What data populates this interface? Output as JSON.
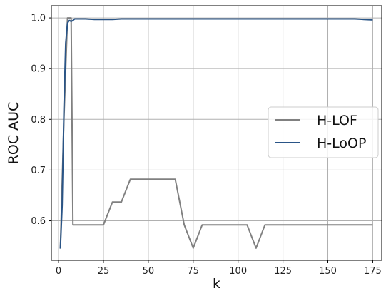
{
  "chart_data": {
    "type": "line",
    "title": "",
    "xlabel": "k",
    "ylabel": "ROC AUC",
    "xlim": [
      -4,
      180
    ],
    "ylim": [
      0.522,
      1.024
    ],
    "grid": true,
    "legend_position": "center-right",
    "x_ticks": [
      0,
      25,
      50,
      75,
      100,
      125,
      150,
      175
    ],
    "y_ticks": [
      0.6,
      0.7,
      0.8,
      0.9,
      1.0
    ],
    "y_tick_labels": [
      "0.6",
      "0.7",
      "0.8",
      "0.9",
      "1.0"
    ],
    "series": [
      {
        "name": "H-LOF",
        "color": "#808080",
        "x": [
          1,
          3,
          5,
          7,
          8,
          9,
          25,
          30,
          35,
          40,
          45,
          50,
          55,
          60,
          65,
          70,
          75,
          80,
          85,
          90,
          95,
          100,
          105,
          110,
          115,
          120,
          125,
          130,
          135,
          140,
          145,
          150,
          155,
          160,
          165,
          170,
          175
        ],
        "y": [
          0.545,
          0.8,
          1.0,
          1.0,
          0.592,
          0.592,
          0.592,
          0.637,
          0.637,
          0.682,
          0.682,
          0.682,
          0.682,
          0.682,
          0.682,
          0.592,
          0.546,
          0.592,
          0.592,
          0.592,
          0.592,
          0.592,
          0.592,
          0.546,
          0.592,
          0.592,
          0.592,
          0.592,
          0.592,
          0.592,
          0.592,
          0.592,
          0.592,
          0.592,
          0.592,
          0.592,
          0.592
        ]
      },
      {
        "name": "H-LoOP",
        "color": "#2a5587",
        "x": [
          1,
          2,
          3,
          4,
          5,
          6,
          7,
          8,
          9,
          10,
          15,
          20,
          25,
          30,
          35,
          40,
          50,
          60,
          70,
          80,
          90,
          100,
          110,
          120,
          130,
          140,
          150,
          160,
          165,
          170,
          175
        ],
        "y": [
          0.545,
          0.63,
          0.82,
          0.95,
          0.99,
          0.995,
          0.993,
          0.995,
          0.998,
          0.998,
          0.998,
          0.997,
          0.997,
          0.997,
          0.998,
          0.998,
          0.998,
          0.998,
          0.998,
          0.998,
          0.998,
          0.998,
          0.998,
          0.998,
          0.998,
          0.998,
          0.998,
          0.998,
          0.998,
          0.997,
          0.996
        ]
      }
    ]
  }
}
